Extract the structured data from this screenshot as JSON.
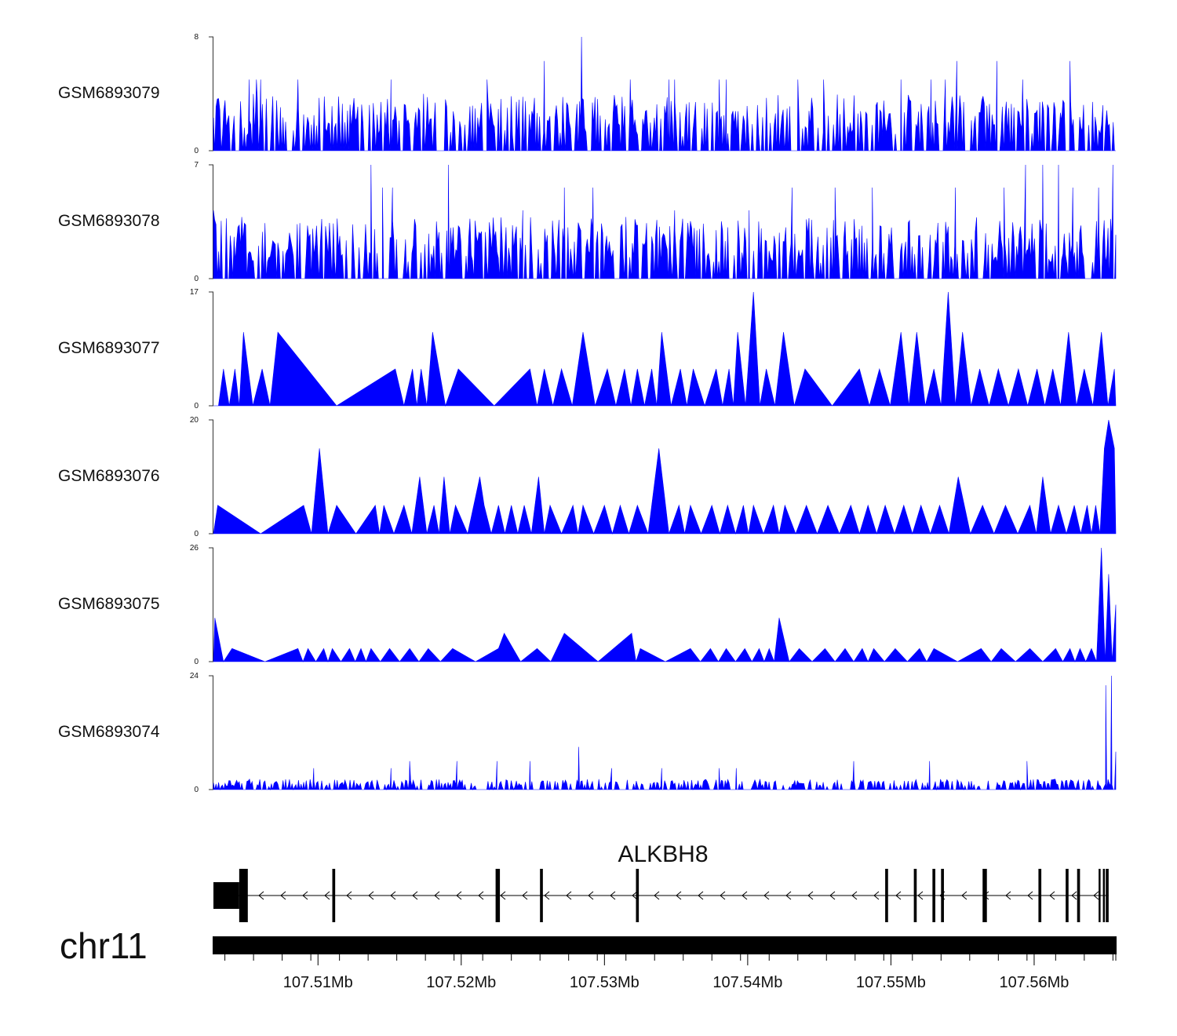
{
  "chart_data": {
    "type": "area",
    "chromosome": "chr11",
    "region_start_mb": 107.5027,
    "region_end_mb": 107.5657,
    "x_ticks": [
      107.51,
      107.52,
      107.53,
      107.54,
      107.55,
      107.56
    ],
    "x_tick_labels": [
      "107.51Mb",
      "107.52Mb",
      "107.53Mb",
      "107.54Mb",
      "107.55Mb",
      "107.56Mb"
    ],
    "track_color": "#0000ff",
    "tracks": [
      {
        "name": "GSM6893079",
        "ymax": 8,
        "ymin": 0,
        "peaks": [
          [
            107.5052,
            5
          ],
          [
            107.5057,
            5
          ],
          [
            107.506,
            5
          ],
          [
            107.5086,
            5
          ],
          [
            107.5151,
            5
          ],
          [
            107.5218,
            5
          ],
          [
            107.5258,
            6.3
          ],
          [
            107.5284,
            8
          ],
          [
            107.5318,
            5
          ],
          [
            107.5345,
            5
          ],
          [
            107.5349,
            5
          ],
          [
            107.538,
            5
          ],
          [
            107.5385,
            5
          ],
          [
            107.5435,
            5
          ],
          [
            107.5453,
            5
          ],
          [
            107.5507,
            5
          ],
          [
            107.5528,
            5
          ],
          [
            107.5538,
            5
          ],
          [
            107.5546,
            6.3
          ],
          [
            107.5574,
            6.3
          ],
          [
            107.5592,
            5
          ],
          [
            107.5625,
            6.3
          ],
          [
            107.5648,
            3.2
          ]
        ],
        "noise_max": 4,
        "noise_density": 0.55
      },
      {
        "name": "GSM6893078",
        "ymax": 7,
        "ymin": 0,
        "peaks": [
          [
            107.5027,
            4.2
          ],
          [
            107.5137,
            7
          ],
          [
            107.5145,
            5.6
          ],
          [
            107.5152,
            5.6
          ],
          [
            107.5191,
            7
          ],
          [
            107.5243,
            4.2
          ],
          [
            107.5272,
            5.6
          ],
          [
            107.5292,
            5.6
          ],
          [
            107.5349,
            4.2
          ],
          [
            107.5401,
            4.2
          ],
          [
            107.5431,
            5.6
          ],
          [
            107.5461,
            5.6
          ],
          [
            107.5487,
            5.6
          ],
          [
            107.5545,
            5.6
          ],
          [
            107.5579,
            5.6
          ],
          [
            107.5594,
            7
          ],
          [
            107.5606,
            7
          ],
          [
            107.5617,
            7
          ],
          [
            107.5627,
            5.6
          ],
          [
            107.5645,
            5.6
          ],
          [
            107.5655,
            7
          ],
          [
            107.5657,
            2.7
          ]
        ],
        "noise_max": 3.8,
        "noise_density": 0.6
      },
      {
        "name": "GSM6893077",
        "ymax": 17,
        "ymin": 0,
        "peaks": [
          [
            107.5048,
            11
          ],
          [
            107.5072,
            11
          ],
          [
            107.518,
            11
          ],
          [
            107.5285,
            11
          ],
          [
            107.534,
            11
          ],
          [
            107.5393,
            11
          ],
          [
            107.5404,
            17
          ],
          [
            107.5425,
            11
          ],
          [
            107.5507,
            11
          ],
          [
            107.5518,
            11
          ],
          [
            107.554,
            17
          ],
          [
            107.555,
            11
          ],
          [
            107.5624,
            11
          ],
          [
            107.5647,
            11
          ]
        ],
        "sparse_peaks": [
          [
            107.5034,
            5.5
          ],
          [
            107.5042,
            5.5
          ],
          [
            107.5061,
            5.5
          ],
          [
            107.5154,
            5.5
          ],
          [
            107.5166,
            5.5
          ],
          [
            107.5172,
            5.5
          ],
          [
            107.5198,
            5.5
          ],
          [
            107.5248,
            5.5
          ],
          [
            107.5258,
            5.5
          ],
          [
            107.527,
            5.5
          ],
          [
            107.5302,
            5.5
          ],
          [
            107.5314,
            5.5
          ],
          [
            107.5323,
            5.5
          ],
          [
            107.5333,
            5.5
          ],
          [
            107.5353,
            5.5
          ],
          [
            107.5362,
            5.5
          ],
          [
            107.5378,
            5.5
          ],
          [
            107.5387,
            5.5
          ],
          [
            107.5413,
            5.5
          ],
          [
            107.544,
            5.5
          ],
          [
            107.5478,
            5.5
          ],
          [
            107.5492,
            5.5
          ],
          [
            107.553,
            5.5
          ],
          [
            107.5562,
            5.5
          ],
          [
            107.5575,
            5.5
          ],
          [
            107.5589,
            5.5
          ],
          [
            107.5602,
            5.5
          ],
          [
            107.5613,
            5.5
          ],
          [
            107.5635,
            5.5
          ],
          [
            107.5656,
            5.5
          ]
        ]
      },
      {
        "name": "GSM6893076",
        "ymax": 20,
        "ymin": 0,
        "peaks": [
          [
            107.5101,
            15
          ],
          [
            107.5171,
            10
          ],
          [
            107.5188,
            10
          ],
          [
            107.5213,
            10
          ],
          [
            107.5254,
            10
          ],
          [
            107.5338,
            15
          ],
          [
            107.536,
            5
          ],
          [
            107.5547,
            10
          ],
          [
            107.5606,
            10
          ],
          [
            107.5652,
            20
          ],
          [
            107.5649,
            15
          ],
          [
            107.5656,
            15
          ]
        ],
        "sparse_peaks": [
          [
            107.503,
            5
          ],
          [
            107.509,
            5
          ],
          [
            107.5113,
            5
          ],
          [
            107.514,
            5
          ],
          [
            107.5146,
            5
          ],
          [
            107.516,
            5
          ],
          [
            107.5181,
            5
          ],
          [
            107.5196,
            5
          ],
          [
            107.5216,
            5
          ],
          [
            107.5226,
            5
          ],
          [
            107.5235,
            5
          ],
          [
            107.5244,
            5
          ],
          [
            107.5262,
            5
          ],
          [
            107.5278,
            5
          ],
          [
            107.5285,
            5
          ],
          [
            107.53,
            5
          ],
          [
            107.5311,
            5
          ],
          [
            107.5323,
            5
          ],
          [
            107.5352,
            5
          ],
          [
            107.5375,
            5
          ],
          [
            107.5386,
            5
          ],
          [
            107.5397,
            5
          ],
          [
            107.5404,
            5
          ],
          [
            107.5418,
            5
          ],
          [
            107.5426,
            5
          ],
          [
            107.5441,
            5
          ],
          [
            107.5456,
            5
          ],
          [
            107.5472,
            5
          ],
          [
            107.5484,
            5
          ],
          [
            107.5496,
            5
          ],
          [
            107.5509,
            5
          ],
          [
            107.5521,
            5
          ],
          [
            107.5534,
            5
          ],
          [
            107.5564,
            5
          ],
          [
            107.558,
            5
          ],
          [
            107.5597,
            5
          ],
          [
            107.5617,
            5
          ],
          [
            107.5628,
            5
          ],
          [
            107.5637,
            5
          ],
          [
            107.5643,
            5
          ]
        ]
      },
      {
        "name": "GSM6893075",
        "ymax": 26,
        "ymin": 0,
        "peaks": [
          [
            107.5028,
            10
          ],
          [
            107.523,
            6.5
          ],
          [
            107.5272,
            6.5
          ],
          [
            107.5319,
            6.5
          ],
          [
            107.5422,
            10
          ],
          [
            107.5647,
            26
          ],
          [
            107.5652,
            20
          ],
          [
            107.5657,
            13
          ]
        ],
        "sparse_peaks": [
          [
            107.504,
            3
          ],
          [
            107.5086,
            3
          ],
          [
            107.5093,
            3
          ],
          [
            107.5104,
            3
          ],
          [
            107.511,
            3
          ],
          [
            107.5122,
            3
          ],
          [
            107.513,
            3
          ],
          [
            107.5137,
            3
          ],
          [
            107.515,
            3
          ],
          [
            107.5164,
            3
          ],
          [
            107.5177,
            3
          ],
          [
            107.5194,
            3
          ],
          [
            107.5226,
            3
          ],
          [
            107.5253,
            3
          ],
          [
            107.5325,
            3
          ],
          [
            107.536,
            3
          ],
          [
            107.5374,
            3
          ],
          [
            107.5385,
            3
          ],
          [
            107.5398,
            3
          ],
          [
            107.5408,
            3
          ],
          [
            107.5415,
            3
          ],
          [
            107.5436,
            3
          ],
          [
            107.5454,
            3
          ],
          [
            107.5468,
            3
          ],
          [
            107.548,
            3
          ],
          [
            107.5488,
            3
          ],
          [
            107.5503,
            3
          ],
          [
            107.552,
            3
          ],
          [
            107.553,
            3
          ],
          [
            107.5563,
            3
          ],
          [
            107.5577,
            3
          ],
          [
            107.5597,
            3
          ],
          [
            107.5615,
            3
          ],
          [
            107.5625,
            3
          ],
          [
            107.5632,
            3
          ],
          [
            107.564,
            3
          ]
        ]
      },
      {
        "name": "GSM6893074",
        "ymax": 24,
        "ymin": 0,
        "peaks": [
          [
            107.5097,
            4.5
          ],
          [
            107.5151,
            4.5
          ],
          [
            107.5164,
            6
          ],
          [
            107.5197,
            6
          ],
          [
            107.5225,
            6
          ],
          [
            107.5248,
            6
          ],
          [
            107.5282,
            9
          ],
          [
            107.5305,
            4.5
          ],
          [
            107.534,
            4.5
          ],
          [
            107.538,
            4.5
          ],
          [
            107.5392,
            4.5
          ],
          [
            107.5474,
            6
          ],
          [
            107.5527,
            6
          ],
          [
            107.5595,
            6
          ],
          [
            107.565,
            22
          ],
          [
            107.5654,
            24
          ],
          [
            107.5657,
            8
          ]
        ],
        "noise_max": 2.2,
        "noise_density": 0.5
      }
    ],
    "gene": {
      "name": "ALKBH8",
      "strand": "-",
      "start_mb": 107.5027,
      "end_mb": 107.5652,
      "utr3": [
        107.5027,
        107.5045
      ],
      "exons": [
        [
          107.5045,
          107.5051
        ],
        [
          107.511,
          107.5112
        ],
        [
          107.5224,
          107.5227
        ],
        [
          107.5255,
          107.5257
        ],
        [
          107.5322,
          107.5324
        ],
        [
          107.5496,
          107.5498
        ],
        [
          107.5516,
          107.5518
        ],
        [
          107.5529,
          107.5531
        ],
        [
          107.5535,
          107.5537
        ],
        [
          107.5564,
          107.5567
        ],
        [
          107.5603,
          107.5605
        ],
        [
          107.5622,
          107.5624
        ],
        [
          107.563,
          107.5632
        ],
        [
          107.5645,
          107.5646
        ],
        [
          107.5648,
          107.5649
        ],
        [
          107.565,
          107.5652
        ]
      ]
    }
  }
}
